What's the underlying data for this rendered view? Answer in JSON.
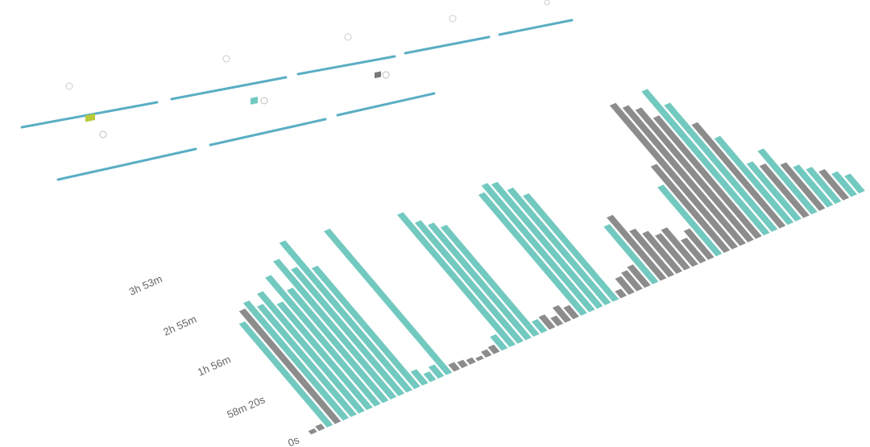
{
  "chart_data": {
    "type": "bar",
    "categories": [
      null,
      null,
      null,
      null,
      null,
      null,
      null,
      null,
      null,
      null,
      null,
      null,
      null,
      null,
      null,
      null,
      null,
      null,
      null,
      null,
      null,
      null,
      null,
      null,
      null,
      null,
      null,
      null,
      null,
      null,
      null,
      null,
      null,
      null,
      null,
      null,
      null,
      null,
      null,
      null,
      null,
      null,
      null,
      null,
      null,
      null,
      null,
      null,
      null,
      null,
      null,
      null,
      null,
      null,
      null,
      null,
      null,
      null,
      null,
      null,
      null,
      null,
      null,
      null,
      null,
      null,
      null,
      null,
      null,
      null
    ],
    "series": [
      {
        "color": "#72c9c0",
        "values": [
          null,
          null,
          9000,
          null,
          10200,
          9600,
          10400,
          9200,
          11200,
          9800,
          12000,
          11000,
          13000,
          10500,
          1200,
          700,
          1000,
          12500,
          null,
          null,
          null,
          null,
          null,
          null,
          1200,
          11500,
          10500,
          10000,
          9500,
          1000,
          null,
          null,
          null,
          null,
          10500,
          11000,
          10800,
          10000,
          9200,
          null,
          null,
          null,
          null,
          5000,
          null,
          null,
          null,
          null,
          null,
          null,
          null,
          6000,
          null,
          null,
          null,
          null,
          null,
          12500,
          11000,
          null,
          7500,
          5000,
          null,
          5500,
          null,
          3500,
          3000,
          null,
          2000,
          1500
        ]
      },
      {
        "color": "#8c8c8c",
        "values": [
          300,
          400,
          null,
          9800,
          null,
          null,
          null,
          null,
          null,
          null,
          null,
          null,
          null,
          null,
          null,
          null,
          null,
          null,
          600,
          500,
          400,
          250,
          500,
          600,
          null,
          null,
          null,
          null,
          null,
          null,
          1100,
          700,
          1300,
          1000,
          null,
          null,
          null,
          null,
          null,
          600,
          1400,
          1600,
          1800,
          null,
          5500,
          4000,
          3500,
          3000,
          3200,
          2000,
          2500,
          null,
          7500,
          12500,
          12000,
          11500,
          10500,
          null,
          null,
          9000,
          null,
          null,
          4500,
          null,
          4000,
          null,
          null,
          2500,
          null,
          null
        ]
      }
    ],
    "ylim": [
      0,
      14000
    ],
    "yticks": [
      {
        "value": 0,
        "label": "0s"
      },
      {
        "value": 3500,
        "label": "58m 20s"
      },
      {
        "value": 7000,
        "label": "1h 56m"
      },
      {
        "value": 10500,
        "label": "2h 55m"
      },
      {
        "value": 14000,
        "label": "3h 53m"
      }
    ]
  }
}
